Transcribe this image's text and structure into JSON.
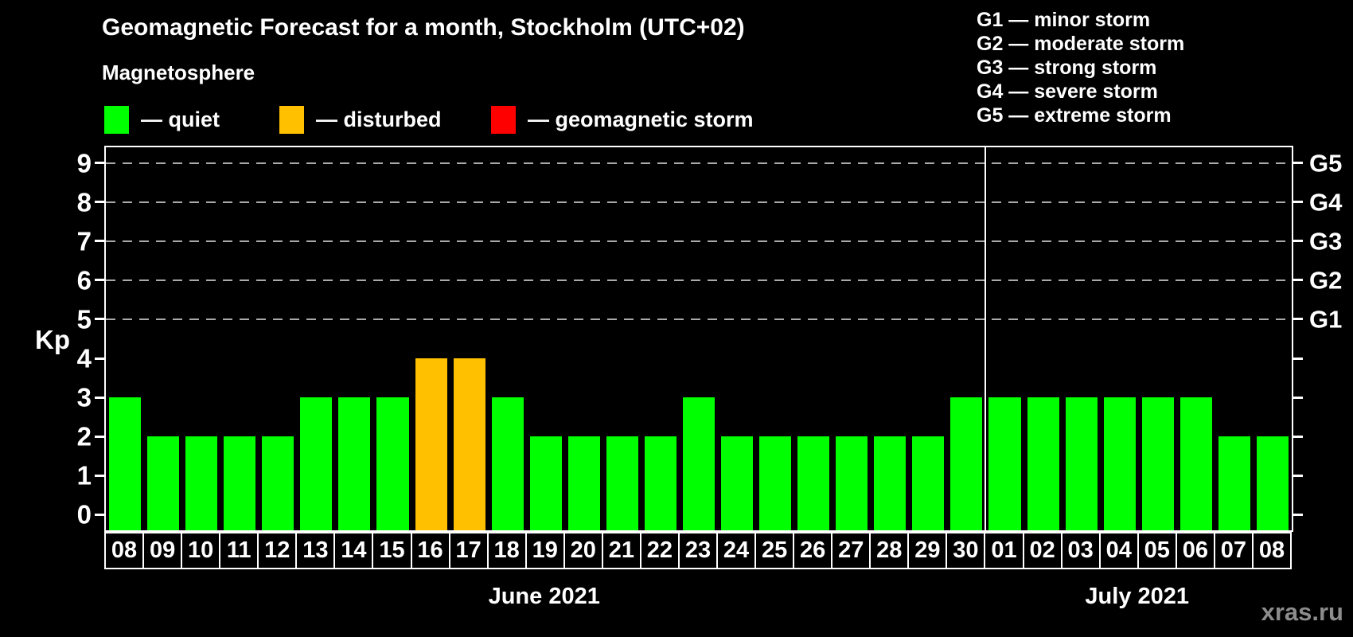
{
  "title": "Geomagnetic Forecast for a month, Stockholm (UTC+02)",
  "subtitle": "Magnetosphere",
  "legend": {
    "items": [
      {
        "key": "quiet",
        "label": "— quiet",
        "color": "#00ff00"
      },
      {
        "key": "disturbed",
        "label": "— disturbed",
        "color": "#ffc000"
      },
      {
        "key": "storm",
        "label": "— geomagnetic storm",
        "color": "#ff0000"
      }
    ]
  },
  "g_scale_legend": [
    "G1 — minor storm",
    "G2 — moderate storm",
    "G3 — strong storm",
    "G4 — severe storm",
    "G5 — extreme storm"
  ],
  "watermark": "xras.ru",
  "chart_data": {
    "type": "bar",
    "title": "Geomagnetic Forecast for a month, Stockholm (UTC+02)",
    "ylabel": "Kp",
    "xlabel": "",
    "yticks": [
      0,
      1,
      2,
      3,
      4,
      5,
      6,
      7,
      8,
      9
    ],
    "ylim": [
      -0.4,
      9.4
    ],
    "grid": "dashed horizontal lines at Kp 5-9 (G1-G5 levels) only",
    "legend_position": "top-left (colors), top-right (G scale)",
    "g_levels": [
      {
        "kp": 5,
        "label": "G1"
      },
      {
        "kp": 6,
        "label": "G2"
      },
      {
        "kp": 7,
        "label": "G3"
      },
      {
        "kp": 8,
        "label": "G4"
      },
      {
        "kp": 9,
        "label": "G5"
      }
    ],
    "months": [
      {
        "label": "June 2021",
        "days": 23
      },
      {
        "label": "July 2021",
        "days": 8
      }
    ],
    "categories": [
      "08",
      "09",
      "10",
      "11",
      "12",
      "13",
      "14",
      "15",
      "16",
      "17",
      "18",
      "19",
      "20",
      "21",
      "22",
      "23",
      "24",
      "25",
      "26",
      "27",
      "28",
      "29",
      "30",
      "01",
      "02",
      "03",
      "04",
      "05",
      "06",
      "07",
      "08"
    ],
    "values": [
      3,
      2,
      2,
      2,
      2,
      3,
      3,
      3,
      4,
      4,
      3,
      2,
      2,
      2,
      2,
      3,
      2,
      2,
      2,
      2,
      2,
      2,
      3,
      3,
      3,
      3,
      3,
      3,
      3,
      2,
      2
    ],
    "status": [
      "quiet",
      "quiet",
      "quiet",
      "quiet",
      "quiet",
      "quiet",
      "quiet",
      "quiet",
      "disturbed",
      "disturbed",
      "quiet",
      "quiet",
      "quiet",
      "quiet",
      "quiet",
      "quiet",
      "quiet",
      "quiet",
      "quiet",
      "quiet",
      "quiet",
      "quiet",
      "quiet",
      "quiet",
      "quiet",
      "quiet",
      "quiet",
      "quiet",
      "quiet",
      "quiet",
      "quiet"
    ],
    "colors": {
      "quiet": "#00ff00",
      "disturbed": "#ffc000",
      "storm": "#ff0000"
    }
  }
}
